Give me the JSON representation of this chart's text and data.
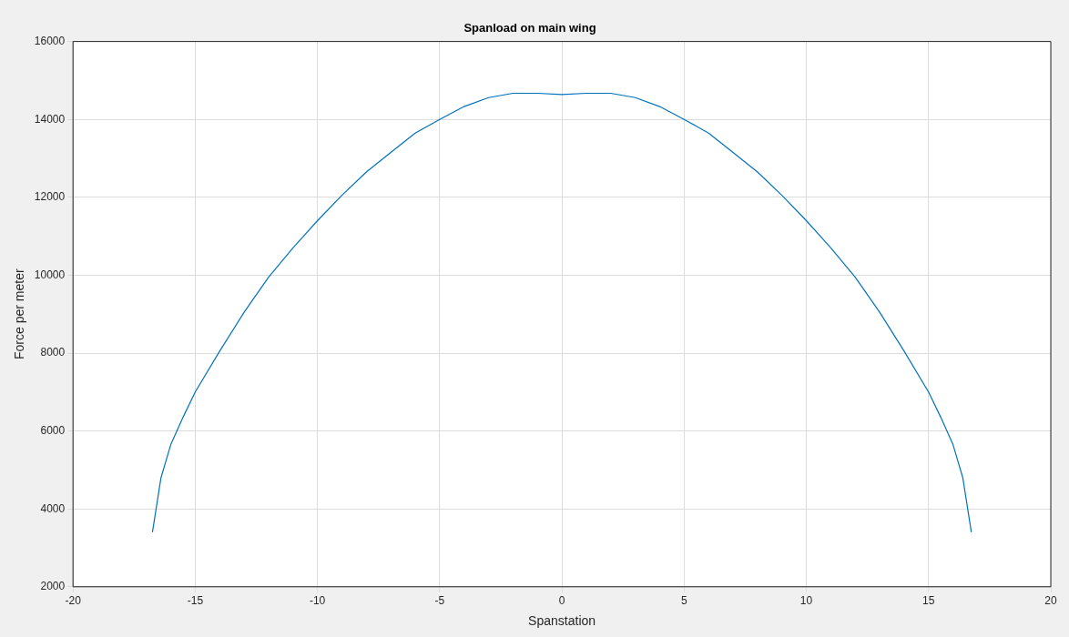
{
  "chart_data": {
    "type": "line",
    "title": "Spanload on main wing",
    "xlabel": "Spanstation",
    "ylabel": "Force per meter",
    "x": [
      -16.75,
      -16.4,
      -16,
      -15.5,
      -15,
      -14,
      -13,
      -12,
      -11,
      -10,
      -9,
      -8,
      -7,
      -6,
      -5,
      -4,
      -3,
      -2,
      -1,
      0,
      1,
      2,
      3,
      4,
      5,
      6,
      7,
      8,
      9,
      10,
      11,
      12,
      13,
      14,
      15,
      15.5,
      16,
      16.4,
      16.75
    ],
    "series": [
      {
        "color": "#0072bd",
        "values": [
          3400,
          4800,
          5650,
          6350,
          7000,
          8050,
          9050,
          9950,
          10700,
          11400,
          12050,
          12650,
          13150,
          13650,
          14000,
          14330,
          14560,
          14670,
          14670,
          14640,
          14670,
          14670,
          14560,
          14330,
          14000,
          13650,
          13150,
          12650,
          12050,
          11400,
          10700,
          9950,
          9050,
          8050,
          7000,
          6350,
          5650,
          4800,
          3400
        ]
      }
    ],
    "xlim": [
      -20,
      20
    ],
    "xticks": [
      -20,
      -15,
      -10,
      -5,
      0,
      5,
      10,
      15,
      20
    ],
    "ylim": [
      2000,
      16000
    ],
    "yticks": [
      2000,
      4000,
      6000,
      8000,
      10000,
      12000,
      14000,
      16000
    ],
    "grid": true,
    "legend": false,
    "marker": "none",
    "line_style": "solid"
  }
}
